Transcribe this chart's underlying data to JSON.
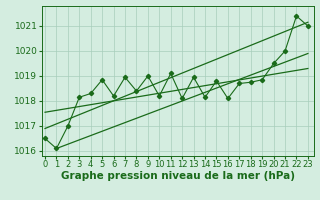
{
  "x": [
    0,
    1,
    2,
    3,
    4,
    5,
    6,
    7,
    8,
    9,
    10,
    11,
    12,
    13,
    14,
    15,
    16,
    17,
    18,
    19,
    20,
    21,
    22,
    23
  ],
  "y_main": [
    1016.5,
    1016.1,
    1017.0,
    1018.15,
    1018.3,
    1018.85,
    1018.2,
    1018.95,
    1018.4,
    1019.0,
    1018.2,
    1019.1,
    1018.1,
    1018.95,
    1018.15,
    1018.8,
    1018.1,
    1018.7,
    1018.75,
    1018.85,
    1019.5,
    1020.0,
    1021.4,
    1021.0
  ],
  "trend_line1_x": [
    0,
    23
  ],
  "trend_line1_y": [
    1016.9,
    1021.15
  ],
  "trend_line2_x": [
    0,
    23
  ],
  "trend_line2_y": [
    1017.55,
    1019.3
  ],
  "trend_line3_x": [
    1,
    23
  ],
  "trend_line3_y": [
    1016.1,
    1019.9
  ],
  "ylim": [
    1015.8,
    1021.8
  ],
  "xlim": [
    -0.3,
    23.5
  ],
  "yticks": [
    1016,
    1017,
    1018,
    1019,
    1020,
    1021
  ],
  "xtick_labels": [
    "0",
    "1",
    "2",
    "3",
    "4",
    "5",
    "6",
    "7",
    "8",
    "9",
    "10",
    "11",
    "12",
    "13",
    "14",
    "15",
    "16",
    "17",
    "18",
    "19",
    "20",
    "21",
    "22",
    "23"
  ],
  "xlabel": "Graphe pression niveau de la mer (hPa)",
  "line_color": "#1a6b1a",
  "bg_color": "#d4ede0",
  "grid_color": "#a8cebb",
  "label_fontsize": 7.5,
  "tick_fontsize": 6.5
}
